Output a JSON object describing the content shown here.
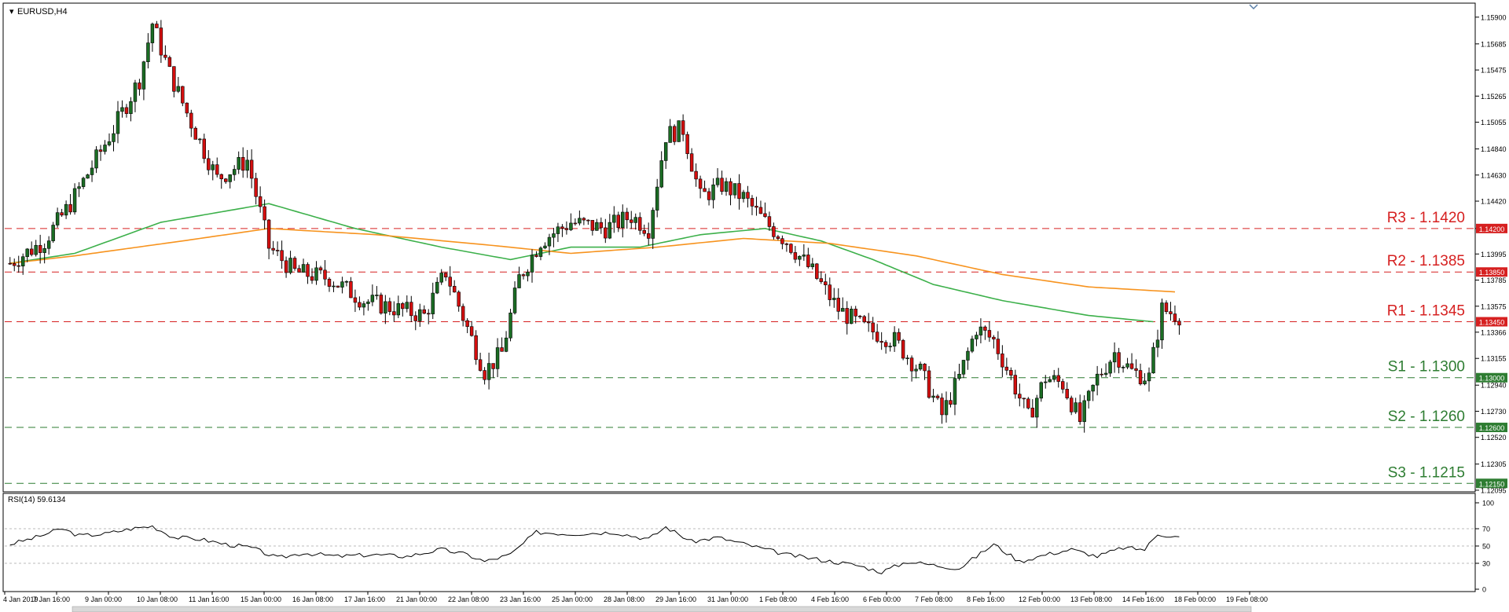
{
  "chart_data": {
    "type": "candlestick",
    "title": "EURUSD,H4",
    "y_axis": {
      "ylim": [
        1.1212,
        1.16
      ],
      "ticks": [
        "1.15900",
        "1.15685",
        "1.15475",
        "1.15265",
        "1.15055",
        "1.14840",
        "1.14630",
        "1.14420",
        "1.14200",
        "1.13995",
        "1.13785",
        "1.13575",
        "1.13366",
        "1.13155",
        "1.12940",
        "1.12730",
        "1.12520",
        "1.12305",
        "1.12095"
      ]
    },
    "x_axis": {
      "ticks": [
        "4 Jan 2019",
        "7 Jan 16:00",
        "9 Jan 00:00",
        "10 Jan 08:00",
        "11 Jan 16:00",
        "15 Jan 00:00",
        "16 Jan 08:00",
        "17 Jan 16:00",
        "21 Jan 00:00",
        "22 Jan 08:00",
        "23 Jan 16:00",
        "25 Jan 00:00",
        "28 Jan 08:00",
        "29 Jan 16:00",
        "31 Jan 00:00",
        "1 Feb 08:00",
        "4 Feb 16:00",
        "6 Feb 00:00",
        "7 Feb 08:00",
        "8 Feb 16:00",
        "12 Feb 00:00",
        "13 Feb 08:00",
        "14 Feb 16:00",
        "18 Feb 00:00",
        "19 Feb 08:00"
      ]
    },
    "levels": [
      {
        "label": "R3 - 1.1420",
        "tag": "1.14200",
        "value": 1.142,
        "color": "#d62020"
      },
      {
        "label": "R2 - 1.1385",
        "tag": "1.13850",
        "value": 1.1385,
        "color": "#d62020"
      },
      {
        "label": "R1 - 1.1345",
        "tag": "1.13450",
        "value": 1.1345,
        "color": "#d62020"
      },
      {
        "label": "S1 - 1.1300",
        "tag": "1.13000",
        "value": 1.13,
        "color": "#2e7d32"
      },
      {
        "label": "S2 - 1.1260",
        "tag": "1.12600",
        "value": 1.126,
        "color": "#2e7d32"
      },
      {
        "label": "S3 - 1.1215",
        "tag": "1.12150",
        "value": 1.1215,
        "color": "#2e7d32"
      }
    ],
    "series": [
      {
        "name": "close_anchor",
        "values": [
          [
            0,
            1.1392
          ],
          [
            8,
            1.141
          ],
          [
            14,
            1.144
          ],
          [
            19,
            1.147
          ],
          [
            24,
            1.15
          ],
          [
            30,
            1.154
          ],
          [
            33,
            1.1585
          ],
          [
            37,
            1.1545
          ],
          [
            42,
            1.1505
          ],
          [
            48,
            1.146
          ],
          [
            55,
            1.1475
          ],
          [
            60,
            1.1405
          ],
          [
            66,
            1.1385
          ],
          [
            74,
            1.138
          ],
          [
            82,
            1.1362
          ],
          [
            90,
            1.1355
          ],
          [
            96,
            1.135
          ],
          [
            101,
            1.1385
          ],
          [
            106,
            1.134
          ],
          [
            110,
            1.1305
          ],
          [
            114,
            1.132
          ],
          [
            118,
            1.138
          ],
          [
            123,
            1.141
          ],
          [
            130,
            1.1425
          ],
          [
            138,
            1.142
          ],
          [
            144,
            1.143
          ],
          [
            148,
            1.142
          ],
          [
            152,
            1.1495
          ],
          [
            156,
            1.15
          ],
          [
            160,
            1.1445
          ],
          [
            165,
            1.1455
          ],
          [
            170,
            1.1445
          ],
          [
            175,
            1.1425
          ],
          [
            180,
            1.141
          ],
          [
            186,
            1.1385
          ],
          [
            192,
            1.1355
          ],
          [
            198,
            1.134
          ],
          [
            205,
            1.133
          ],
          [
            211,
            1.1305
          ],
          [
            216,
            1.127
          ],
          [
            220,
            1.13
          ],
          [
            224,
            1.134
          ],
          [
            228,
            1.133
          ],
          [
            232,
            1.13
          ],
          [
            236,
            1.1268
          ],
          [
            240,
            1.13
          ],
          [
            244,
            1.1295
          ],
          [
            248,
            1.1265
          ],
          [
            252,
            1.13
          ],
          [
            256,
            1.132
          ],
          [
            260,
            1.1305
          ],
          [
            264,
            1.13
          ],
          [
            267,
            1.1355
          ],
          [
            271,
            1.135
          ]
        ]
      },
      {
        "name": "ma_green",
        "values": [
          [
            0,
            1.1392
          ],
          [
            15,
            1.14
          ],
          [
            35,
            1.1425
          ],
          [
            60,
            1.144
          ],
          [
            80,
            1.142
          ],
          [
            100,
            1.1405
          ],
          [
            116,
            1.1395
          ],
          [
            130,
            1.1405
          ],
          [
            146,
            1.1405
          ],
          [
            160,
            1.1415
          ],
          [
            175,
            1.142
          ],
          [
            188,
            1.141
          ],
          [
            200,
            1.1395
          ],
          [
            214,
            1.1375
          ],
          [
            230,
            1.1362
          ],
          [
            250,
            1.135
          ],
          [
            265,
            1.1345
          ]
        ]
      },
      {
        "name": "ma_orange",
        "values": [
          [
            0,
            1.1392
          ],
          [
            15,
            1.1398
          ],
          [
            40,
            1.141
          ],
          [
            60,
            1.142
          ],
          [
            85,
            1.1415
          ],
          [
            110,
            1.1407
          ],
          [
            130,
            1.14
          ],
          [
            150,
            1.1405
          ],
          [
            170,
            1.1412
          ],
          [
            190,
            1.1408
          ],
          [
            210,
            1.1398
          ],
          [
            230,
            1.1383
          ],
          [
            250,
            1.1373
          ],
          [
            270,
            1.1369
          ]
        ]
      }
    ]
  },
  "rsi": {
    "title": "RSI(14) 59.6134",
    "ticks": [
      "100",
      "70",
      "50",
      "30",
      "0"
    ],
    "values": [
      [
        0,
        52
      ],
      [
        6,
        60
      ],
      [
        12,
        70
      ],
      [
        16,
        62
      ],
      [
        22,
        64
      ],
      [
        28,
        70
      ],
      [
        33,
        73
      ],
      [
        38,
        60
      ],
      [
        44,
        58
      ],
      [
        50,
        52
      ],
      [
        56,
        48
      ],
      [
        62,
        36
      ],
      [
        68,
        42
      ],
      [
        76,
        38
      ],
      [
        84,
        40
      ],
      [
        92,
        38
      ],
      [
        100,
        46
      ],
      [
        106,
        40
      ],
      [
        110,
        32
      ],
      [
        116,
        40
      ],
      [
        122,
        66
      ],
      [
        130,
        64
      ],
      [
        140,
        66
      ],
      [
        148,
        58
      ],
      [
        152,
        72
      ],
      [
        158,
        55
      ],
      [
        164,
        60
      ],
      [
        172,
        50
      ],
      [
        180,
        40
      ],
      [
        188,
        34
      ],
      [
        196,
        28
      ],
      [
        202,
        20
      ],
      [
        208,
        32
      ],
      [
        214,
        28
      ],
      [
        220,
        24
      ],
      [
        228,
        52
      ],
      [
        234,
        32
      ],
      [
        240,
        40
      ],
      [
        246,
        46
      ],
      [
        252,
        38
      ],
      [
        258,
        48
      ],
      [
        263,
        46
      ],
      [
        266,
        64
      ],
      [
        271,
        60
      ]
    ]
  }
}
